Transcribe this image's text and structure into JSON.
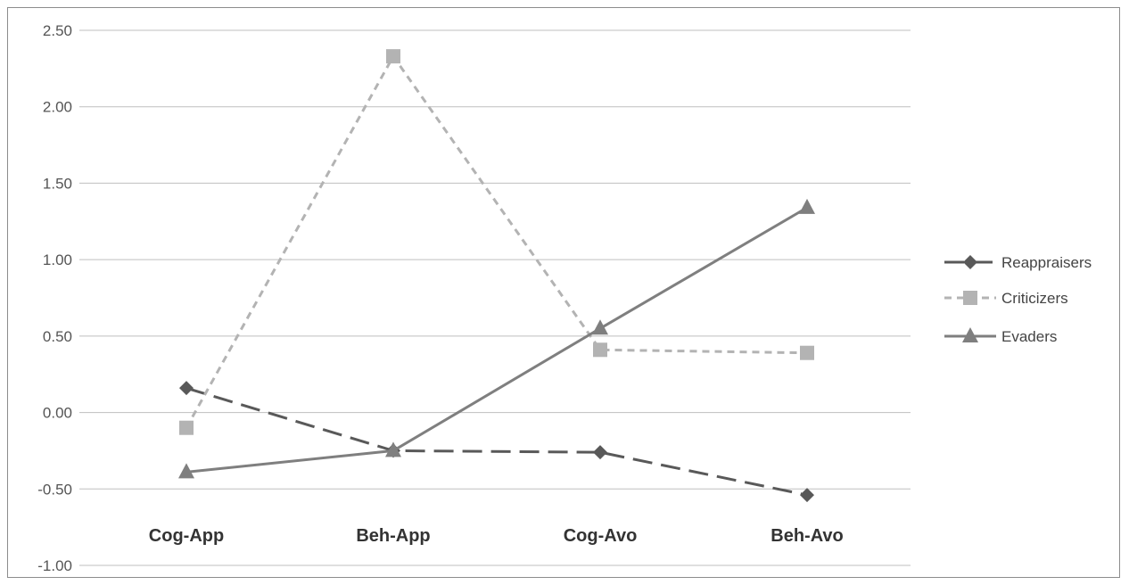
{
  "chart_data": {
    "type": "line",
    "categories": [
      "Cog-App",
      "Beh-App",
      "Cog-Avo",
      "Beh-Avo"
    ],
    "ylim": [
      -1.0,
      2.5
    ],
    "yticks": [
      "-1.00",
      "-0.50",
      "0.00",
      "0.50",
      "1.00",
      "1.50",
      "2.00",
      "2.50"
    ],
    "ytick_values": [
      -1.0,
      -0.5,
      0.0,
      0.5,
      1.0,
      1.5,
      2.0,
      2.5
    ],
    "grid": true,
    "legend_position": "right",
    "series": [
      {
        "name": "Reappraisers",
        "values": [
          0.16,
          -0.25,
          -0.26,
          -0.54
        ],
        "color": "#595959",
        "dash": "long-dash",
        "marker": "diamond"
      },
      {
        "name": "Criticizers",
        "values": [
          -0.1,
          2.33,
          0.41,
          0.39
        ],
        "color": "#b3b3b3",
        "dash": "short-dash",
        "marker": "square"
      },
      {
        "name": "Evaders",
        "values": [
          -0.39,
          -0.25,
          0.55,
          1.34
        ],
        "color": "#7f7f7f",
        "dash": "solid",
        "marker": "triangle"
      }
    ]
  }
}
